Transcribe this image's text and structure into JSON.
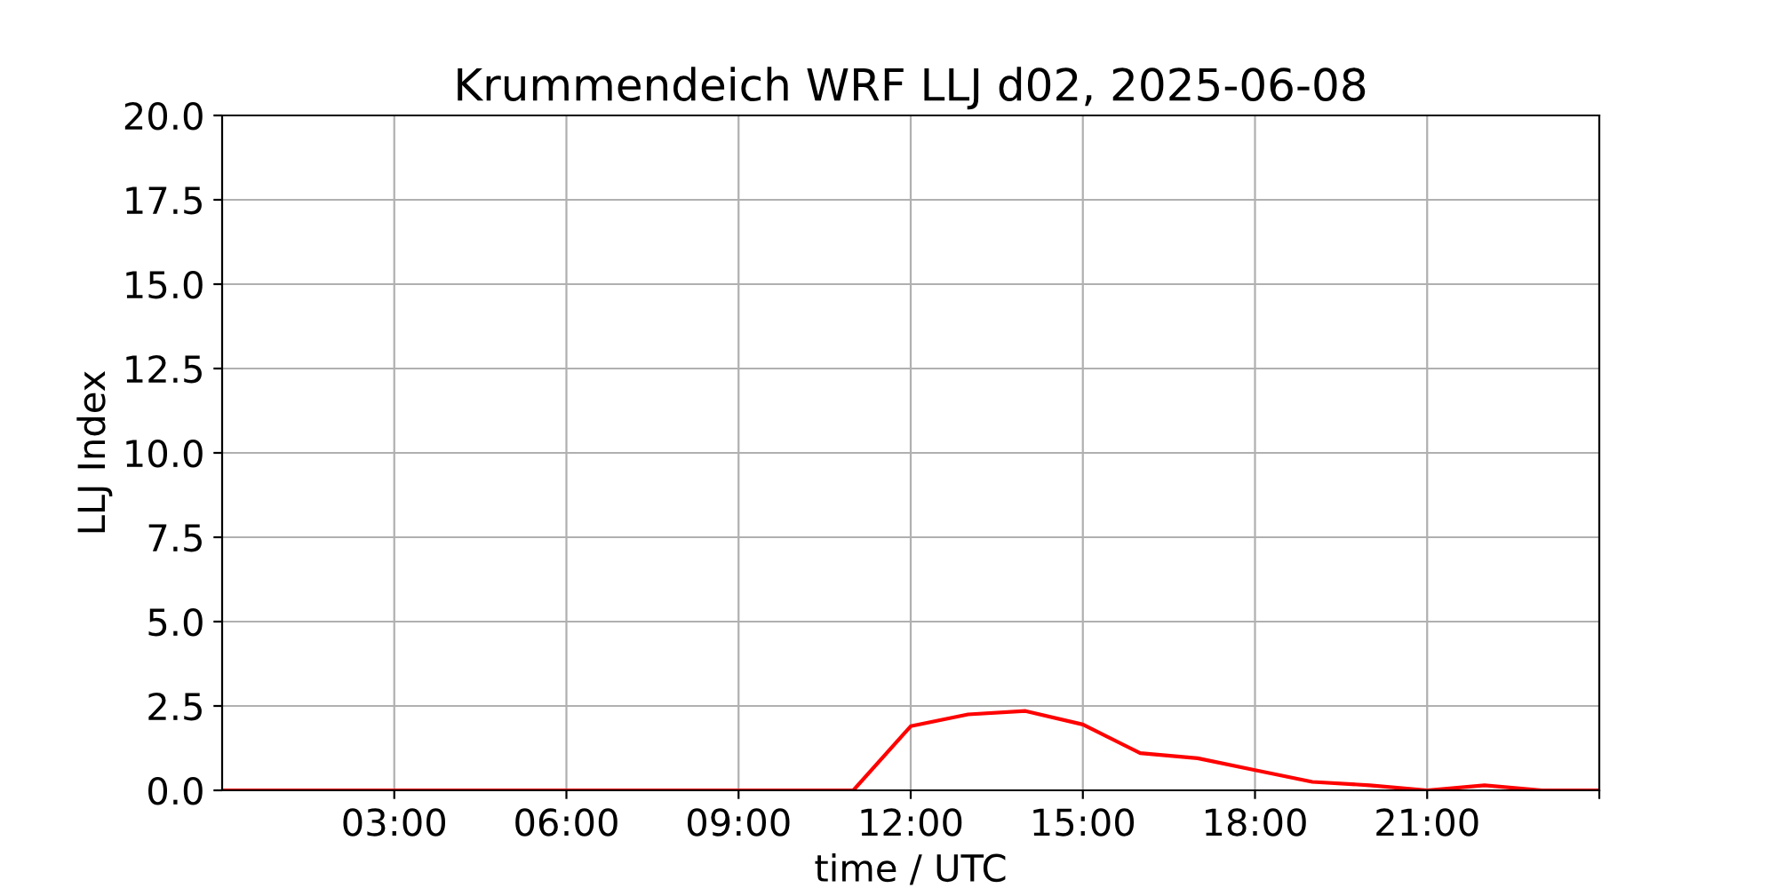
{
  "chart_data": {
    "type": "line",
    "title": "Krummendeich WRF LLJ d02, 2025-06-08",
    "xlabel": "time / UTC",
    "ylabel": "LLJ Index",
    "x": [
      0,
      1,
      2,
      3,
      4,
      5,
      6,
      7,
      8,
      9,
      10,
      11,
      12,
      13,
      14,
      15,
      16,
      17,
      18,
      19,
      20,
      21,
      22,
      23,
      24
    ],
    "series": [
      {
        "color": "#ff0000",
        "values": [
          0,
          0,
          0,
          0,
          0,
          0,
          0,
          0,
          0,
          0,
          0,
          0,
          1.9,
          2.25,
          2.35,
          1.95,
          1.1,
          0.95,
          0.6,
          0.25,
          0.15,
          0,
          0.15,
          0,
          0
        ]
      }
    ],
    "xlim": [
      0,
      24
    ],
    "xticks": [
      {
        "value": 3,
        "label": "03:00"
      },
      {
        "value": 6,
        "label": "06:00"
      },
      {
        "value": 9,
        "label": "09:00"
      },
      {
        "value": 12,
        "label": "12:00"
      },
      {
        "value": 15,
        "label": "15:00"
      },
      {
        "value": 18,
        "label": "18:00"
      },
      {
        "value": 21,
        "label": "21:00"
      },
      {
        "value": 24,
        "label": null
      }
    ],
    "ylim": [
      0,
      20
    ],
    "yticks": [
      {
        "value": 0,
        "label": "0.0"
      },
      2.5,
      {
        "value": 5,
        "label": "5.0"
      },
      7.5,
      {
        "value": 10,
        "label": "10.0"
      },
      12.5,
      {
        "value": 15,
        "label": "15.0"
      },
      17.5,
      {
        "value": 20,
        "label": "20.0"
      }
    ],
    "grid": true,
    "legend": false
  }
}
